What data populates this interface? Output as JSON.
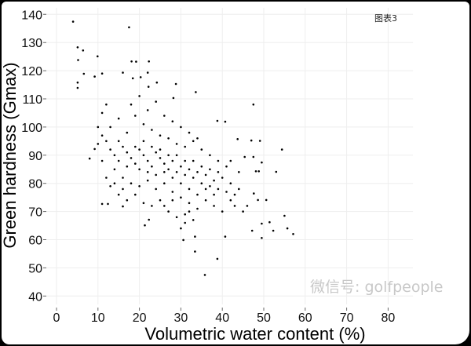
{
  "chart_data": {
    "type": "scatter",
    "title": "",
    "annotation": "图表3",
    "watermark": "微信号: golfpeople",
    "xlabel": "Volumetric water content (%)",
    "ylabel": "Green hardness (Gmax)",
    "xlim": [
      -3,
      86
    ],
    "ylim": [
      37,
      142
    ],
    "xticks": [
      0,
      10,
      20,
      30,
      40,
      50,
      60,
      70,
      80
    ],
    "yticks": [
      40,
      50,
      60,
      70,
      80,
      90,
      100,
      110,
      120,
      130,
      140
    ],
    "grid": true,
    "legend": "none",
    "point_color": "#000000",
    "grid_color": "#eeeeee",
    "points": [
      [
        4.0,
        137.4
      ],
      [
        17.5,
        135.4
      ],
      [
        5.1,
        128.3
      ],
      [
        6.4,
        127.2
      ],
      [
        9.9,
        125.1
      ],
      [
        5.2,
        123.8
      ],
      [
        18.1,
        123.3
      ],
      [
        19.2,
        123.2
      ],
      [
        22.3,
        123.3
      ],
      [
        6.6,
        118.9
      ],
      [
        11,
        119
      ],
      [
        9.2,
        117.9
      ],
      [
        22.0,
        119.3
      ],
      [
        16.0,
        119.3
      ],
      [
        18.4,
        117.3
      ],
      [
        20.3,
        117.7
      ],
      [
        5.1,
        115.8
      ],
      [
        5.1,
        113.9
      ],
      [
        24.2,
        115.8
      ],
      [
        28.8,
        115.3
      ],
      [
        33.6,
        112.4
      ],
      [
        22.2,
        114.3
      ],
      [
        28.2,
        110.3
      ],
      [
        47.5,
        108.0
      ],
      [
        38.8,
        102.2
      ],
      [
        40.7,
        101.9
      ],
      [
        54.4,
        92.0
      ],
      [
        43.7,
        95.7
      ],
      [
        47.0,
        95.2
      ],
      [
        49.1,
        95.1
      ],
      [
        53.0,
        84.1
      ],
      [
        55.0,
        68.5
      ],
      [
        55.7,
        64.0
      ],
      [
        57.1,
        62.0
      ],
      [
        49.5,
        60.6
      ],
      [
        52.3,
        63.2
      ],
      [
        51.4,
        66.2
      ],
      [
        50.6,
        74.1
      ],
      [
        47.6,
        76.4
      ],
      [
        48.6,
        74.1
      ],
      [
        40.7,
        61.1
      ],
      [
        33.4,
        61.1
      ],
      [
        33.4,
        55.8
      ],
      [
        38.8,
        53.2
      ],
      [
        35.8,
        47.5
      ],
      [
        21.3,
        65.1
      ],
      [
        22.3,
        67.1
      ],
      [
        30.6,
        59.9
      ],
      [
        8.0,
        88.8
      ],
      [
        9.2,
        92.2
      ],
      [
        11,
        72.7
      ],
      [
        12.4,
        72.7
      ],
      [
        16,
        71.8
      ],
      [
        49.5,
        65.7
      ],
      [
        47.2,
        63.2
      ],
      [
        49.5,
        87.4
      ],
      [
        47.5,
        89.4
      ],
      [
        45.4,
        89.4
      ],
      [
        48.1,
        84.3
      ],
      [
        48.8,
        84.3
      ],
      [
        12,
        95
      ],
      [
        13,
        92
      ],
      [
        14,
        90
      ],
      [
        15,
        88
      ],
      [
        16,
        93
      ],
      [
        17,
        91
      ],
      [
        18,
        89
      ],
      [
        19,
        87
      ],
      [
        20,
        92
      ],
      [
        21,
        90
      ],
      [
        22,
        88
      ],
      [
        23,
        86
      ],
      [
        24,
        91
      ],
      [
        25,
        89
      ],
      [
        26,
        87
      ],
      [
        27,
        85
      ],
      [
        28,
        88
      ],
      [
        29,
        84
      ],
      [
        30,
        86
      ],
      [
        31,
        83
      ],
      [
        32,
        85
      ],
      [
        33,
        82
      ],
      [
        34,
        84
      ],
      [
        35,
        80
      ],
      [
        36,
        83
      ],
      [
        37,
        79
      ],
      [
        38,
        81
      ],
      [
        39,
        78
      ],
      [
        40,
        82
      ],
      [
        41,
        77
      ],
      [
        42,
        80
      ],
      [
        43,
        76
      ],
      [
        44,
        78
      ],
      [
        14,
        85
      ],
      [
        16,
        82
      ],
      [
        18,
        80
      ],
      [
        20,
        79
      ],
      [
        22,
        81
      ],
      [
        24,
        78
      ],
      [
        26,
        80
      ],
      [
        28,
        77
      ],
      [
        30,
        75
      ],
      [
        32,
        73
      ],
      [
        34,
        71
      ],
      [
        36,
        74
      ],
      [
        38,
        72
      ],
      [
        40,
        70
      ],
      [
        13,
        100
      ],
      [
        15,
        103
      ],
      [
        17,
        98
      ],
      [
        19,
        104
      ],
      [
        21,
        101
      ],
      [
        23,
        99
      ],
      [
        25,
        97
      ],
      [
        27,
        96
      ],
      [
        29,
        94
      ],
      [
        31,
        93
      ],
      [
        33,
        95
      ],
      [
        35,
        92
      ],
      [
        37,
        90
      ],
      [
        39,
        88
      ],
      [
        41,
        86
      ],
      [
        11,
        88
      ],
      [
        12,
        82
      ],
      [
        13,
        79
      ],
      [
        15,
        76
      ],
      [
        17,
        74
      ],
      [
        19,
        76
      ],
      [
        21,
        73
      ],
      [
        23,
        72
      ],
      [
        25,
        74
      ],
      [
        27,
        70
      ],
      [
        29,
        68
      ],
      [
        31,
        69
      ],
      [
        33,
        67
      ],
      [
        18,
        108
      ],
      [
        20,
        111
      ],
      [
        22,
        106
      ],
      [
        24,
        109
      ],
      [
        26,
        104
      ],
      [
        28,
        102
      ],
      [
        30,
        100
      ],
      [
        32,
        98
      ],
      [
        34,
        96
      ],
      [
        11,
        105
      ],
      [
        12,
        108
      ],
      [
        10,
        100
      ],
      [
        10,
        94
      ],
      [
        11,
        97
      ],
      [
        15,
        95
      ],
      [
        17,
        86
      ],
      [
        19,
        93
      ],
      [
        20,
        85
      ],
      [
        21,
        95
      ],
      [
        22,
        84
      ],
      [
        23,
        93
      ],
      [
        24,
        83
      ],
      [
        25,
        92
      ],
      [
        26,
        84
      ],
      [
        27,
        90
      ],
      [
        28,
        82
      ],
      [
        29,
        90
      ],
      [
        30,
        80
      ],
      [
        31,
        88
      ],
      [
        32,
        78
      ],
      [
        33,
        88
      ],
      [
        34,
        76
      ],
      [
        35,
        86
      ],
      [
        36,
        78
      ],
      [
        37,
        85
      ],
      [
        38,
        76
      ],
      [
        39,
        84
      ],
      [
        42,
        74
      ],
      [
        43,
        72
      ],
      [
        45,
        70
      ],
      [
        46,
        72
      ],
      [
        44,
        84
      ],
      [
        42,
        88
      ],
      [
        31,
        66
      ],
      [
        30,
        64
      ],
      [
        32,
        70
      ],
      [
        26,
        72
      ],
      [
        28,
        74
      ],
      [
        16,
        78
      ],
      [
        14,
        80
      ]
    ]
  }
}
